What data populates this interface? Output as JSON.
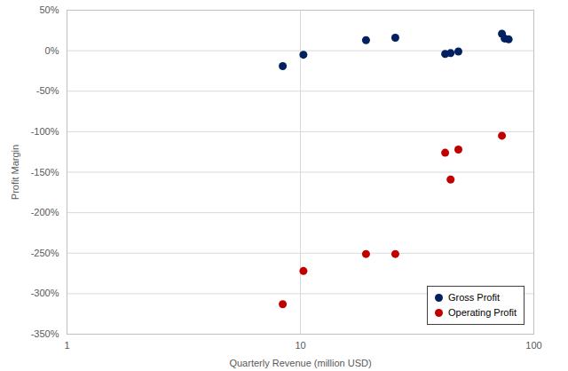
{
  "chart_data": {
    "type": "scatter",
    "x_label": "Quarterly Revenue (million USD)",
    "y_label": "Profit Margin",
    "log": "x",
    "grid": true,
    "legend": "lower right",
    "xlim": [
      1,
      100
    ],
    "xticks": [
      1,
      10,
      100
    ],
    "ylim": [
      -350,
      50
    ],
    "yticks": [
      {
        "value": -350,
        "label": "-350%"
      },
      {
        "value": -300,
        "label": "-300%"
      },
      {
        "value": -250,
        "label": "-250%"
      },
      {
        "value": -200,
        "label": "-200%"
      },
      {
        "value": -150,
        "label": "-150%"
      },
      {
        "value": -100,
        "label": "-100%"
      },
      {
        "value": -50,
        "label": "-50%"
      },
      {
        "value": 0,
        "label": "0%"
      },
      {
        "value": 50,
        "label": "50%"
      }
    ],
    "series": [
      {
        "name": "Gross Profit",
        "color": "#002060",
        "marker": "circle",
        "x": [
          8.4,
          10.3,
          19.1,
          25.5,
          41.7,
          44,
          47.5,
          73,
          75,
          78
        ],
        "values": [
          -19,
          -5,
          13,
          16,
          -4,
          -3,
          -1,
          21,
          15,
          14
        ]
      },
      {
        "name": "Operating Profit",
        "color": "#C00000",
        "marker": "circle",
        "x": [
          8.4,
          10.3,
          19.1,
          25.5,
          41.7,
          44,
          47.5,
          73
        ],
        "values": [
          -313,
          -272,
          -251,
          -251,
          -126,
          -159,
          -122,
          -105
        ]
      }
    ]
  }
}
